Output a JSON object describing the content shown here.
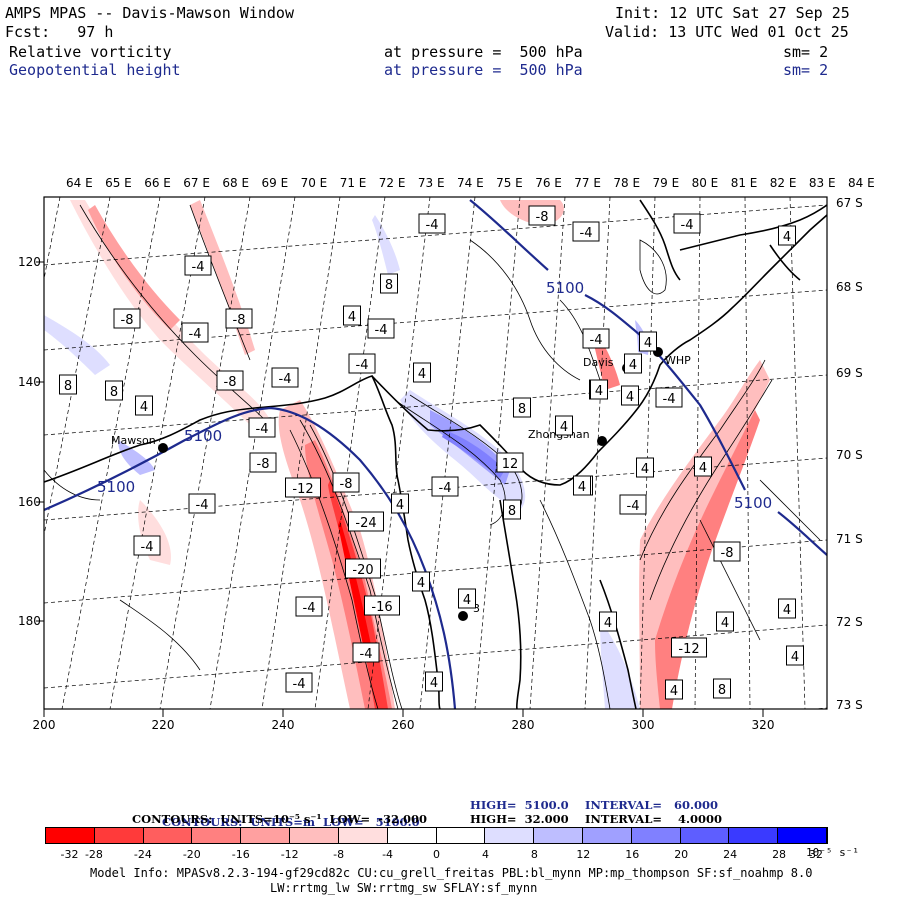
{
  "header": {
    "title": "AMPS MPAS -- Davis-Mawson Window",
    "init": "Init: 12 UTC Sat 27 Sep 25",
    "fcst": "Fcst:   97 h",
    "valid": "Valid: 13 UTC Wed 01 Oct 25",
    "field1": {
      "name": "Relative vorticity",
      "level": "at pressure =  500 hPa",
      "sm": "sm= 2"
    },
    "field2": {
      "name": "Geopotential height",
      "level": "at pressure =  500 hPa",
      "sm": "sm= 2"
    }
  },
  "map": {
    "lon_labels": [
      "64 E",
      "65 E",
      "66 E",
      "67 E",
      "68 E",
      "69 E",
      "70 E",
      "71 E",
      "72 E",
      "73 E",
      "74 E",
      "75 E",
      "76 E",
      "77 E",
      "78 E",
      "79 E",
      "80 E",
      "81 E",
      "82 E",
      "83 E",
      "84 E"
    ],
    "lat_labels": [
      "67 S",
      "68 S",
      "69 S",
      "70 S",
      "71 S",
      "72 S",
      "73 S"
    ],
    "x_ticks": [
      "200",
      "220",
      "240",
      "260",
      "280",
      "300",
      "320"
    ],
    "y_ticks": [
      "120",
      "140",
      "160",
      "180"
    ],
    "stations": [
      {
        "name": "Mawson"
      },
      {
        "name": "Davis"
      },
      {
        "name": "WHP"
      },
      {
        "name": "Zhongshan"
      },
      {
        "name": "3"
      }
    ],
    "height_labels": [
      "5100",
      "5100",
      "5100",
      "5100"
    ],
    "vort_labels": [
      "-4",
      "-4",
      "-8",
      "-4",
      "-8",
      "-8",
      "-4",
      "8",
      "4",
      "-4",
      "-4",
      "-4",
      "-8",
      "-12",
      "-8",
      "-24",
      "-20",
      "-16",
      "-4",
      "-4",
      "-4",
      "4",
      "8",
      "4",
      "4",
      "-4",
      "4",
      "12",
      "-4",
      "8",
      "-8",
      "-4",
      "-4",
      "4",
      "4",
      "4",
      "-4",
      "4",
      "4",
      "8",
      "4",
      "4",
      "-4",
      "-8",
      "-12",
      "4",
      "8",
      "4",
      "4",
      "4",
      "4",
      "-4",
      "8",
      "4",
      "-4",
      "4",
      "4",
      "4",
      "4",
      "4"
    ],
    "colors": {
      "height_contour": "#1e2a8e",
      "coast": "#000000",
      "red_max": "#ff0000",
      "blue_max": "#0000ff"
    }
  },
  "footer": {
    "contours1": {
      "label": "CONTOURS:  UNITS=m  LOW=   5100.0",
      "high": "HIGH=  5100.0",
      "interval": "INTERVAL=   60.000"
    },
    "contours2": {
      "label": "CONTOURS:  UNITS=10⁻⁵ s⁻¹  LOW=  -32.000",
      "high": "HIGH=  32.000",
      "interval": "INTERVAL=    4.0000"
    },
    "colorbar": {
      "colors": [
        "#ff0000",
        "#ff3a3a",
        "#ff5e5e",
        "#ff8080",
        "#ffa0a0",
        "#ffbebe",
        "#ffdede",
        "#ffffff",
        "#ffffff",
        "#dedeff",
        "#bebeff",
        "#a0a0ff",
        "#8080ff",
        "#5e5eff",
        "#3a3aff",
        "#0000ff"
      ],
      "labels": [
        "-32",
        "-28",
        "-24",
        "-20",
        "-16",
        "-12",
        "-8",
        "-4",
        "0",
        "4",
        "8",
        "12",
        "16",
        "20",
        "24",
        "28",
        "32"
      ],
      "units": "10⁻⁵ s⁻¹"
    },
    "model_info": "Model Info: MPASv8.2.3-194-gf29cd82c CU:cu_grell_freitas PBL:bl_mynn MP:mp_thompson SF:sf_noahmp 8.0",
    "model_info2": "LW:rrtmg_lw SW:rrtmg_sw SFLAY:sf_mynn"
  }
}
